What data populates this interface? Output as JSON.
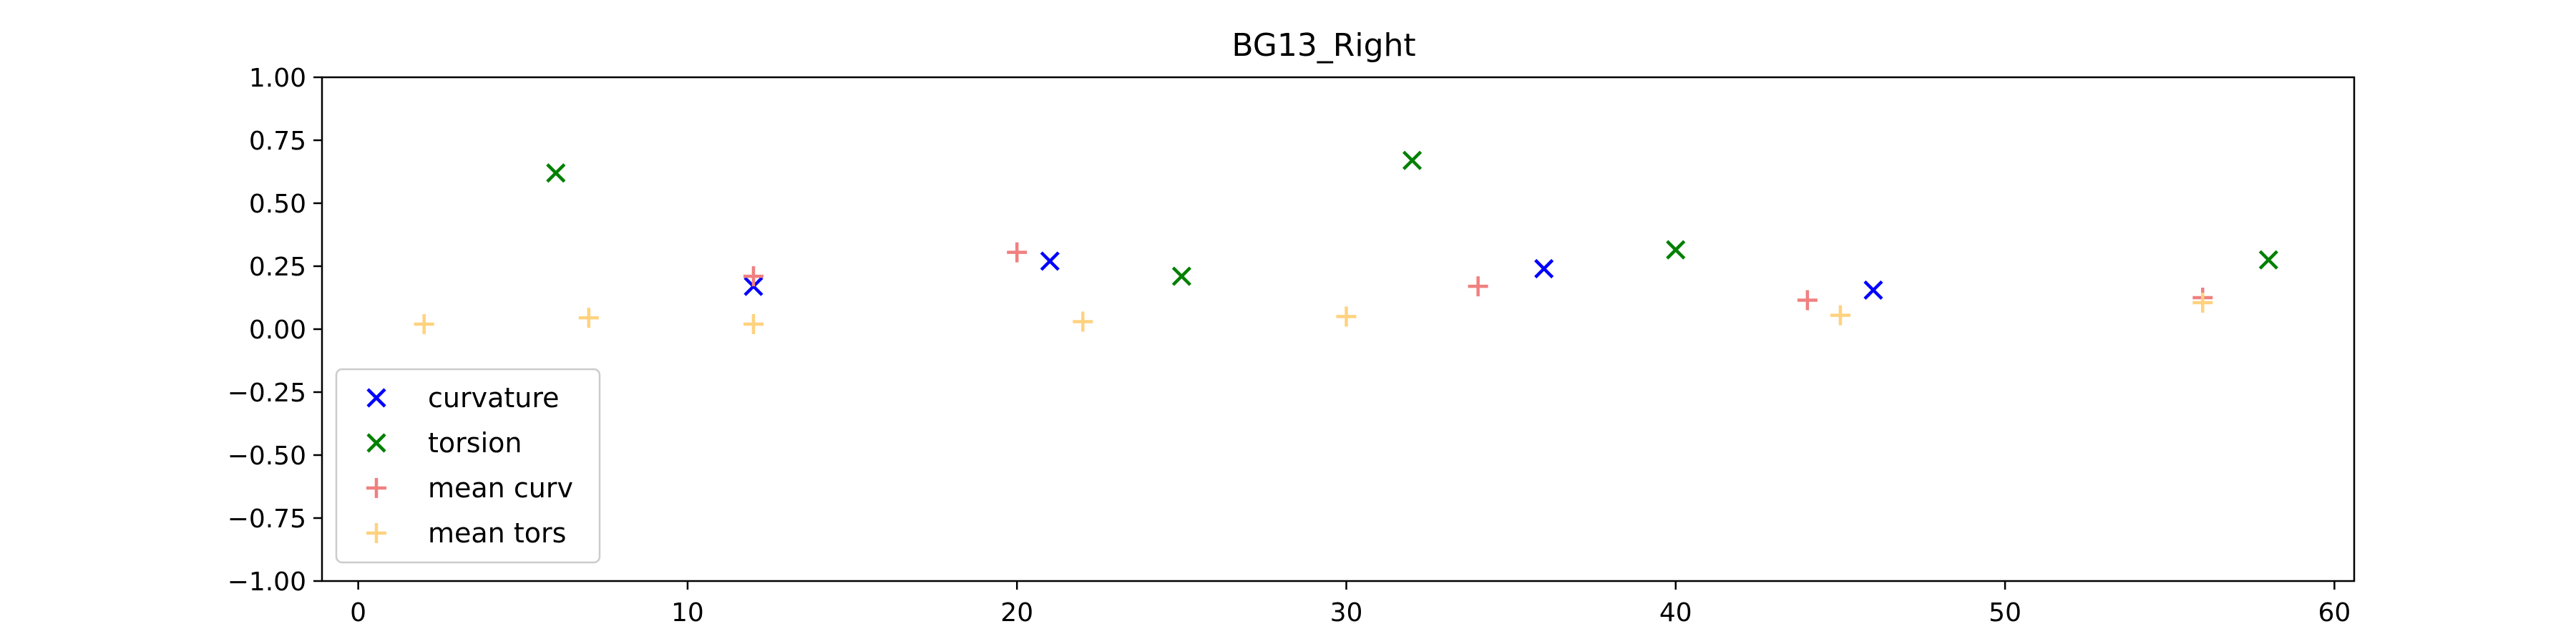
{
  "chart_data": {
    "type": "scatter",
    "title": "BG13_Right",
    "xlabel": "",
    "ylabel": "",
    "xlim": [
      -1.1,
      60.6
    ],
    "ylim": [
      -1.0,
      1.0
    ],
    "xticks": [
      0,
      10,
      20,
      30,
      40,
      50,
      60
    ],
    "xtick_labels": [
      "0",
      "10",
      "20",
      "30",
      "40",
      "50",
      "60"
    ],
    "yticks": [
      1.0,
      0.75,
      0.5,
      0.25,
      0.0,
      -0.25,
      -0.5,
      -0.75,
      -1.0
    ],
    "ytick_labels": [
      "1.00",
      "0.75",
      "0.50",
      "0.25",
      "0.00",
      "−0.25",
      "−0.50",
      "−0.75",
      "−1.00"
    ],
    "grid": false,
    "legend_position": "lower-left",
    "series": [
      {
        "name": "curvature",
        "marker": "x",
        "color": "#0000ff",
        "x": [
          12,
          21,
          36,
          46
        ],
        "y": [
          0.17,
          0.27,
          0.24,
          0.155
        ]
      },
      {
        "name": "torsion",
        "marker": "x",
        "color": "#008000",
        "x": [
          6,
          25,
          32,
          40,
          58
        ],
        "y": [
          0.62,
          0.21,
          0.67,
          0.315,
          0.275
        ]
      },
      {
        "name": "mean curv",
        "marker": "+",
        "color": "#f08080",
        "x": [
          12,
          20,
          34,
          44,
          56
        ],
        "y": [
          0.21,
          0.305,
          0.17,
          0.115,
          0.125
        ]
      },
      {
        "name": "mean tors",
        "marker": "+",
        "color": "#ffd27f",
        "x": [
          2,
          7,
          12,
          22,
          30,
          45,
          56
        ],
        "y": [
          0.02,
          0.045,
          0.02,
          0.03,
          0.05,
          0.055,
          0.105
        ]
      }
    ]
  }
}
